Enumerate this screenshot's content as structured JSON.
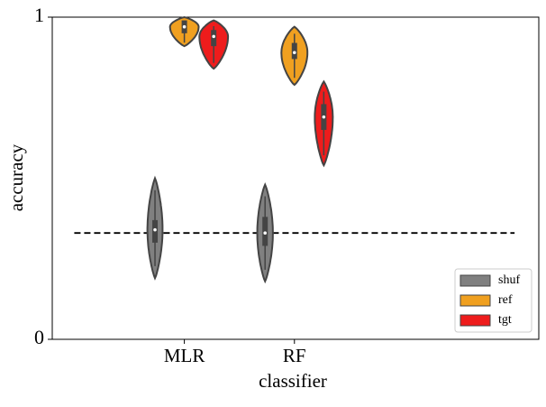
{
  "chart_data": {
    "type": "violin",
    "xlabel": "classifier",
    "ylabel": "accuracy",
    "categories": [
      null,
      "MLR",
      "RF",
      null,
      null
    ],
    "xlim": [
      -0.2,
      4.22
    ],
    "ylim": [
      0,
      1
    ],
    "yticks": [
      0,
      1
    ],
    "reference_line": {
      "y": 0.33,
      "x": [
        0,
        4
      ]
    },
    "legend": "lower right",
    "series": [
      {
        "name": "shuf",
        "color": "#808080",
        "min": [
          null,
          0.19,
          0.18,
          null,
          null
        ],
        "q1": [
          null,
          0.3,
          0.29,
          null,
          null
        ],
        "median": [
          null,
          0.34,
          0.33,
          null,
          null
        ],
        "q3": [
          null,
          0.37,
          0.38,
          null,
          null
        ],
        "max": [
          null,
          0.5,
          0.48,
          null,
          null
        ]
      },
      {
        "name": "ref",
        "color": "#f0a020",
        "min": [
          null,
          0.91,
          0.79,
          null,
          null
        ],
        "q1": [
          null,
          0.95,
          0.87,
          null,
          null
        ],
        "median": [
          null,
          0.97,
          0.89,
          null,
          null
        ],
        "q3": [
          null,
          0.99,
          0.92,
          null,
          null
        ],
        "max": [
          null,
          1.0,
          0.97,
          null,
          null
        ]
      },
      {
        "name": "tgt",
        "color": "#ee1c1c",
        "min": [
          null,
          0.84,
          0.54,
          null,
          null
        ],
        "q1": [
          null,
          0.91,
          0.65,
          null,
          null
        ],
        "median": [
          null,
          0.94,
          0.69,
          null,
          null
        ],
        "q3": [
          null,
          0.96,
          0.73,
          null,
          null
        ],
        "max": [
          null,
          0.99,
          0.8,
          null,
          null
        ]
      }
    ]
  }
}
